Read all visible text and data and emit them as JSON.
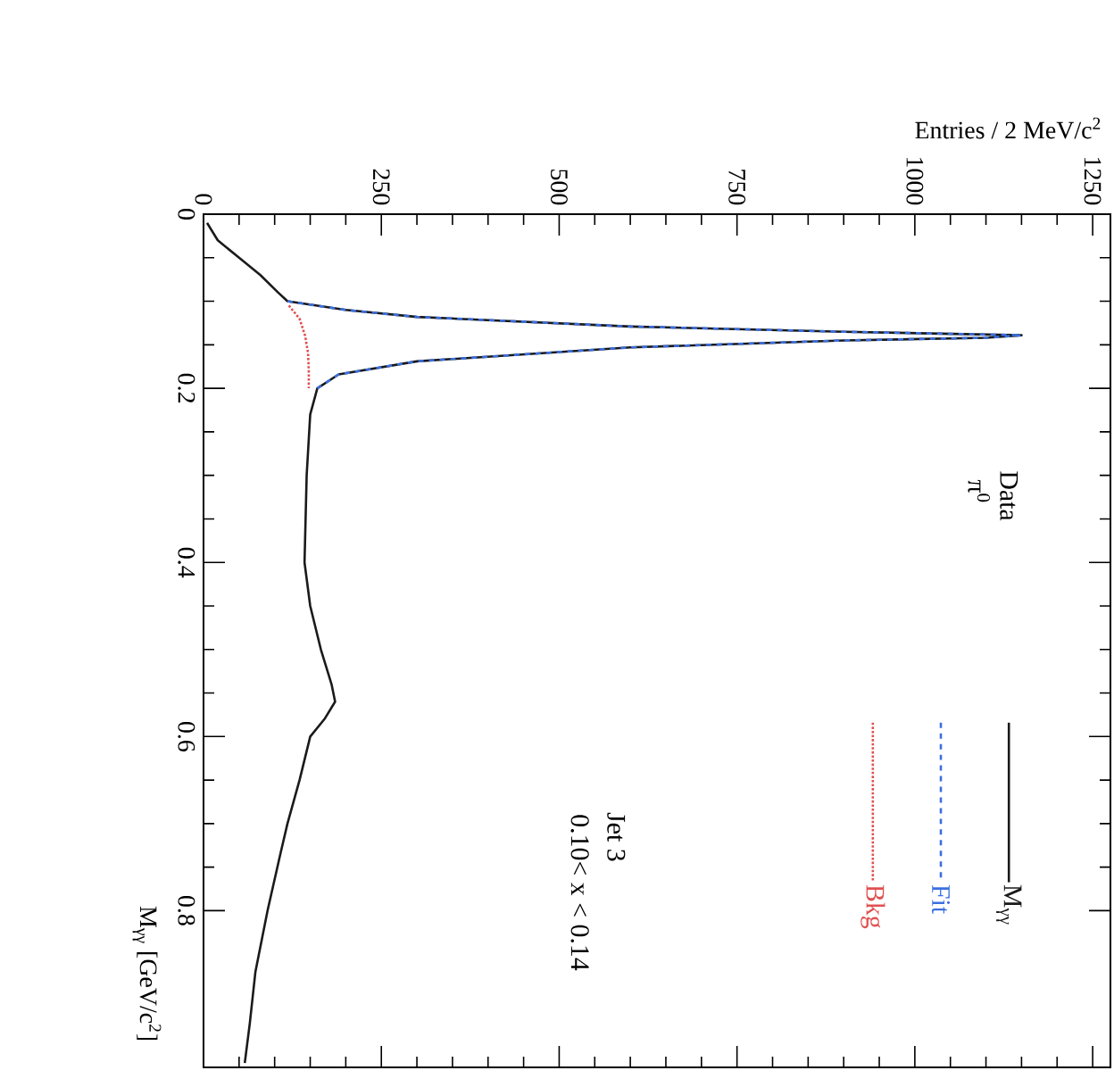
{
  "chart_data": {
    "type": "line",
    "xlabel": "Entries / 2 MeV/c$^{2}$",
    "ylabel": "M$_{γγ}$ [GeV/c$^{2}$]",
    "annotations": [
      "Data",
      "π$^{0}$",
      "Jet 3",
      "0.10< x < 0.14"
    ],
    "xlim": [
      0,
      1275
    ],
    "xticks": [
      0,
      250,
      500,
      750,
      1000,
      1250
    ],
    "ylim": [
      0.98,
      0
    ],
    "yticks": [
      0,
      0.2,
      0.4,
      0.6,
      0.8
    ],
    "legend": "bottom right",
    "grid": false,
    "marker": "none",
    "series": [
      {
        "name": "M$_{γγ}$",
        "color": "#1a1a1a",
        "line_style": "solid",
        "x": [
          5,
          20,
          50,
          80,
          105,
          118,
          200,
          300,
          600,
          900,
          1150,
          1100,
          900,
          600,
          300,
          190,
          160,
          150,
          145,
          142,
          150,
          165,
          180,
          185,
          170,
          150,
          135,
          118,
          108,
          90,
          73,
          65,
          58
        ],
        "values": [
          0.01,
          0.03,
          0.05,
          0.07,
          0.09,
          0.1,
          0.11,
          0.118,
          0.129,
          0.135,
          0.139,
          0.142,
          0.145,
          0.153,
          0.169,
          0.184,
          0.2,
          0.23,
          0.3,
          0.4,
          0.45,
          0.5,
          0.54,
          0.56,
          0.58,
          0.6,
          0.65,
          0.7,
          0.735,
          0.8,
          0.87,
          0.93,
          0.975
        ]
      },
      {
        "name": "Fit",
        "color": "#3b6fe0",
        "line_style": "dashed",
        "x": [
          118,
          200,
          300,
          600,
          900,
          1150,
          1100,
          900,
          600,
          300,
          190,
          160
        ],
        "values": [
          0.1,
          0.11,
          0.118,
          0.129,
          0.135,
          0.139,
          0.142,
          0.145,
          0.153,
          0.169,
          0.184,
          0.2
        ]
      },
      {
        "name": "Bkg",
        "color": "#e05050",
        "line_style": "dotted",
        "x": [
          120,
          135,
          143,
          147,
          148,
          148
        ],
        "values": [
          0.105,
          0.12,
          0.14,
          0.16,
          0.18,
          0.2
        ]
      }
    ]
  }
}
